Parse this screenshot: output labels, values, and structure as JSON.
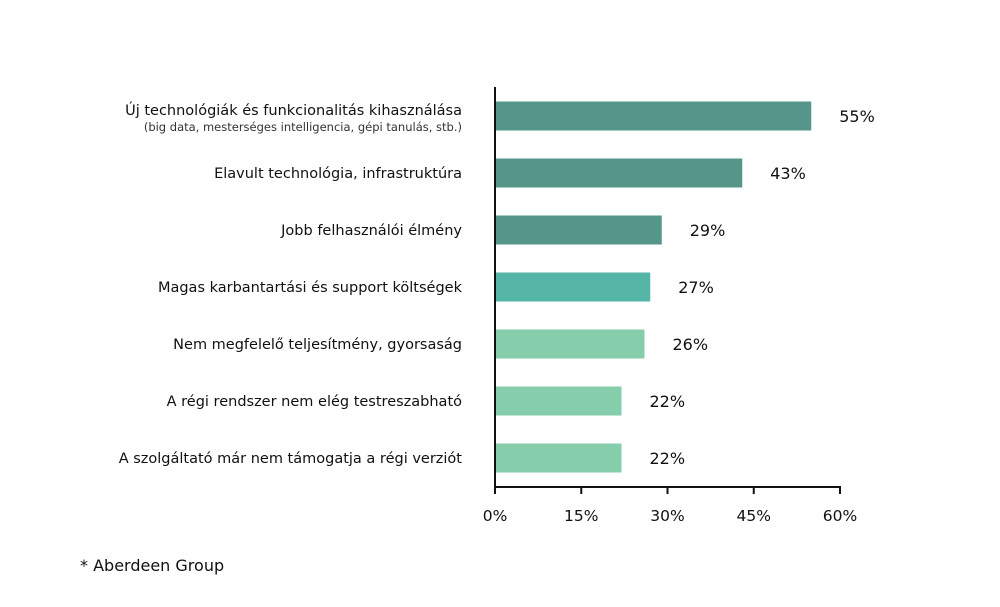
{
  "chart_data": {
    "type": "bar",
    "orientation": "horizontal",
    "categories": [
      "Új technológiák és funkcionalitás kihasználása",
      "Elavult technológia, infrastruktúra",
      "Jobb felhasználói élmény",
      "Magas karbantartási és support költségek",
      "Nem megfelelő teljesítmény, gyorsaság",
      "A régi rendszer nem elég testreszabható",
      "A szolgáltató már nem támogatja a régi verziót"
    ],
    "category_notes": [
      "(big data, mesterséges intelligencia, gépi tanulás, stb.)",
      "",
      "",
      "",
      "",
      "",
      ""
    ],
    "values": [
      55,
      43,
      29,
      27,
      26,
      22,
      22
    ],
    "value_labels": [
      "55%",
      "43%",
      "29%",
      "27%",
      "26%",
      "22%",
      "22%"
    ],
    "bar_colors": [
      "#56958a",
      "#56958a",
      "#56958a",
      "#55b5a6",
      "#86cdab",
      "#86cdab",
      "#86cdab"
    ],
    "xlim": [
      0,
      60
    ],
    "xticks": [
      0,
      15,
      30,
      45,
      60
    ],
    "xtick_labels": [
      "0%",
      "15%",
      "30%",
      "45%",
      "60%"
    ],
    "grid": false,
    "legend": "none"
  },
  "footnote": "* Aberdeen Group"
}
